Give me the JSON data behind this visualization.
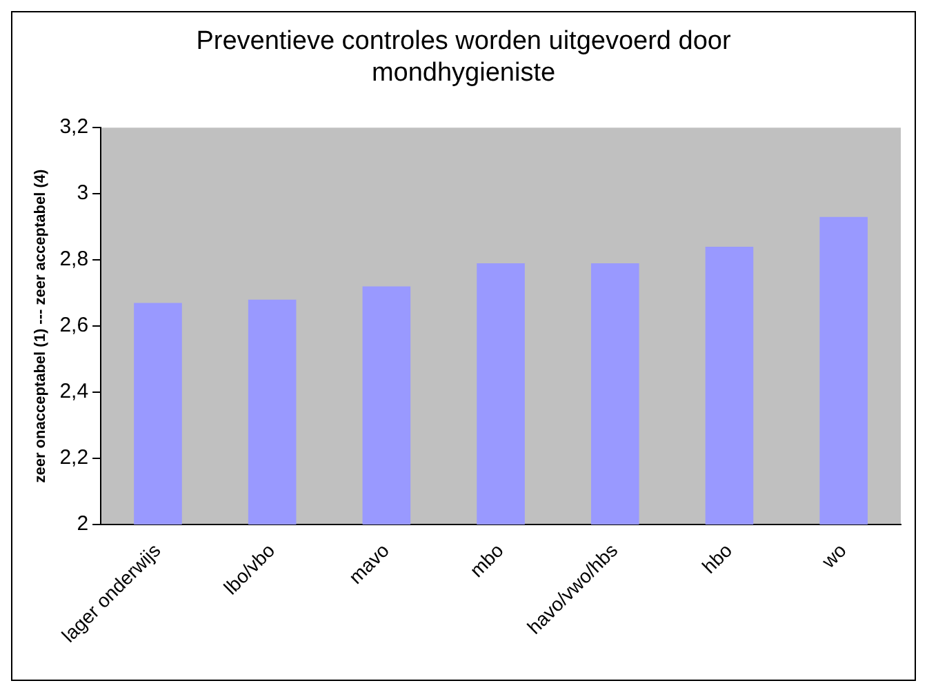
{
  "chart_data": {
    "type": "bar",
    "title": [
      "Preventieve controles worden uitgevoerd door",
      "mondhygieniste"
    ],
    "ylabel": "zeer onacceptabel (1) --- zeer acceptabel (4)",
    "categories": [
      "lager onderwijs",
      "lbo/vbo",
      "mavo",
      "mbo",
      "havo/vwo/hbs",
      "hbo",
      "wo"
    ],
    "values": [
      2.67,
      2.68,
      2.72,
      2.79,
      2.79,
      2.84,
      2.93
    ],
    "color": "#9999ff",
    "ylim": [
      2,
      3.2
    ],
    "yticks": [
      {
        "value": 2,
        "label": "2"
      },
      {
        "value": 2.2,
        "label": "2,2"
      },
      {
        "value": 2.4,
        "label": "2,4"
      },
      {
        "value": 2.6,
        "label": "2,6"
      },
      {
        "value": 2.8,
        "label": "2,8"
      },
      {
        "value": 3,
        "label": "3"
      },
      {
        "value": 3.2,
        "label": "3,2"
      }
    ],
    "grid": false,
    "legend": false
  }
}
